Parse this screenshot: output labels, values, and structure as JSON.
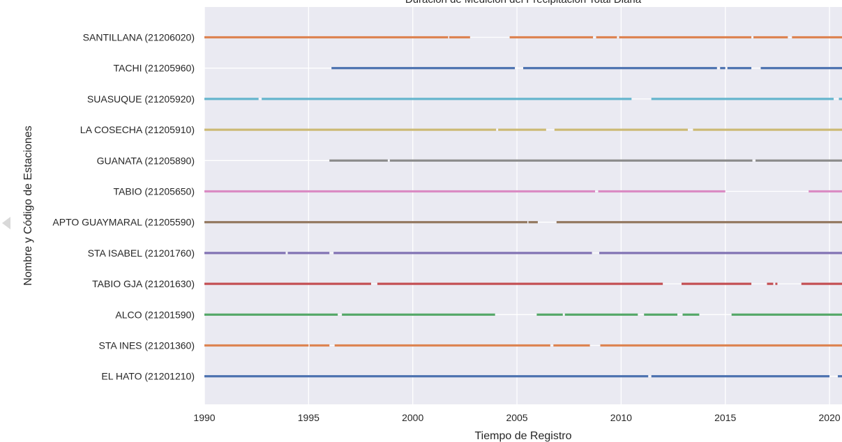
{
  "chart_data": {
    "type": "timeline",
    "title": "Duración de Medición del Precipitación Total Diaria",
    "xlabel": "Tiempo de Registro",
    "ylabel": "Nombre y Código de Estaciones",
    "xlim": [
      1990,
      2020.6
    ],
    "xticks": [
      1990,
      1995,
      2000,
      2005,
      2010,
      2015,
      2020
    ],
    "grid": true,
    "series": [
      {
        "name": "SANTILLANA (21206020)",
        "color": "#dd8452",
        "segments": [
          [
            1990.0,
            2001.7
          ],
          [
            2001.75,
            2002.75
          ],
          [
            2004.65,
            2008.65
          ],
          [
            2008.8,
            2009.8
          ],
          [
            2009.9,
            2016.25
          ],
          [
            2016.35,
            2018.0
          ],
          [
            2018.2,
            2020.6
          ]
        ]
      },
      {
        "name": "TACHI  (21205960)",
        "color": "#4c72b0",
        "segments": [
          [
            1996.1,
            2004.9
          ],
          [
            2005.3,
            2014.6
          ],
          [
            2014.75,
            2015.0
          ],
          [
            2015.1,
            2016.25
          ],
          [
            2016.7,
            2020.6
          ]
        ]
      },
      {
        "name": "SUASUQUE  (21205920)",
        "color": "#64b5cd",
        "segments": [
          [
            1990.0,
            1992.6
          ],
          [
            1992.75,
            2010.5
          ],
          [
            2011.45,
            2020.2
          ],
          [
            2020.45,
            2020.6
          ]
        ]
      },
      {
        "name": "LA COSECHA (21205910)",
        "color": "#ccb974",
        "segments": [
          [
            1990.0,
            2004.0
          ],
          [
            2004.1,
            2006.4
          ],
          [
            2006.8,
            2013.2
          ],
          [
            2013.45,
            2020.6
          ]
        ]
      },
      {
        "name": "GUANATA (21205890)",
        "color": "#8c8c8c",
        "segments": [
          [
            1996.0,
            1998.8
          ],
          [
            1998.9,
            2016.3
          ],
          [
            2016.45,
            2020.6
          ]
        ]
      },
      {
        "name": "TABIO (21205650)",
        "color": "#da8bc3",
        "segments": [
          [
            1990.0,
            2008.75
          ],
          [
            2008.9,
            2015.0
          ],
          [
            2019.0,
            2020.6
          ]
        ]
      },
      {
        "name": "APTO GUAYMARAL (21205590)",
        "color": "#937860",
        "segments": [
          [
            1990.0,
            2005.5
          ],
          [
            2005.55,
            2006.0
          ],
          [
            2006.9,
            2020.6
          ]
        ]
      },
      {
        "name": "STA ISABEL (21201760)",
        "color": "#8172b3",
        "segments": [
          [
            1990.0,
            1993.9
          ],
          [
            1994.0,
            1996.0
          ],
          [
            1996.2,
            2008.6
          ],
          [
            2008.95,
            2020.6
          ]
        ]
      },
      {
        "name": "TABIO GJA (21201630)",
        "color": "#c44e52",
        "segments": [
          [
            1990.0,
            1998.0
          ],
          [
            1998.3,
            2012.0
          ],
          [
            2012.9,
            2016.25
          ],
          [
            2017.0,
            2017.3
          ],
          [
            2017.4,
            2017.5
          ],
          [
            2018.65,
            2020.6
          ]
        ]
      },
      {
        "name": "ALCO (21201590)",
        "color": "#55a868",
        "segments": [
          [
            1990.0,
            1996.4
          ],
          [
            1996.6,
            2003.95
          ],
          [
            2005.95,
            2007.2
          ],
          [
            2007.3,
            2010.8
          ],
          [
            2011.1,
            2012.7
          ],
          [
            2012.95,
            2013.75
          ],
          [
            2015.3,
            2020.6
          ]
        ]
      },
      {
        "name": "STA INES (21201360)",
        "color": "#dd8452",
        "segments": [
          [
            1990.0,
            1995.0
          ],
          [
            1995.05,
            1996.0
          ],
          [
            1996.25,
            2006.6
          ],
          [
            2006.75,
            2008.5
          ],
          [
            2009.0,
            2020.6
          ]
        ]
      },
      {
        "name": "EL HATO (21201210)",
        "color": "#4c72b0",
        "segments": [
          [
            1990.0,
            2011.3
          ],
          [
            2011.45,
            2020.0
          ],
          [
            2020.4,
            2020.6
          ]
        ]
      }
    ]
  },
  "colors": {
    "plot_background": "#eaeaf2",
    "grid": "#ffffff",
    "text": "#262626"
  }
}
